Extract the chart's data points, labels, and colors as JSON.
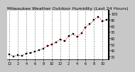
{
  "title": "Milwaukee Weather Outdoor Humidity (Last 24 Hours)",
  "bg_color": "#c8c8c8",
  "plot_bg_color": "#ffffff",
  "line_color": "#ff0000",
  "marker_color": "#000000",
  "grid_color": "#888888",
  "ylim": [
    25,
    105
  ],
  "ytick_values": [
    30,
    40,
    50,
    60,
    70,
    80,
    90,
    100
  ],
  "ytick_labels": [
    "30",
    "40",
    "50",
    "60",
    "70",
    "80",
    "90",
    "100"
  ],
  "x_values": [
    0,
    1,
    2,
    3,
    4,
    5,
    6,
    7,
    8,
    9,
    10,
    11,
    12,
    13,
    14,
    15,
    16,
    17,
    18,
    19,
    20,
    21,
    22,
    23
  ],
  "y_values": [
    33,
    30,
    32,
    31,
    35,
    36,
    38,
    40,
    43,
    47,
    50,
    53,
    58,
    55,
    63,
    67,
    62,
    68,
    78,
    83,
    90,
    95,
    88,
    90
  ],
  "x_tick_positions": [
    0,
    2,
    4,
    6,
    8,
    10,
    12,
    14,
    16,
    18,
    20,
    22
  ],
  "x_tick_labels": [
    "12",
    "2",
    "4",
    "6",
    "8",
    "10",
    "12",
    "2",
    "4",
    "6",
    "8",
    "10"
  ],
  "vgrid_positions": [
    0,
    2,
    4,
    6,
    8,
    10,
    12,
    14,
    16,
    18,
    20,
    22
  ],
  "title_fontsize": 4.5,
  "tick_fontsize": 3.5,
  "line_width": 0.8,
  "marker_size": 2.0
}
